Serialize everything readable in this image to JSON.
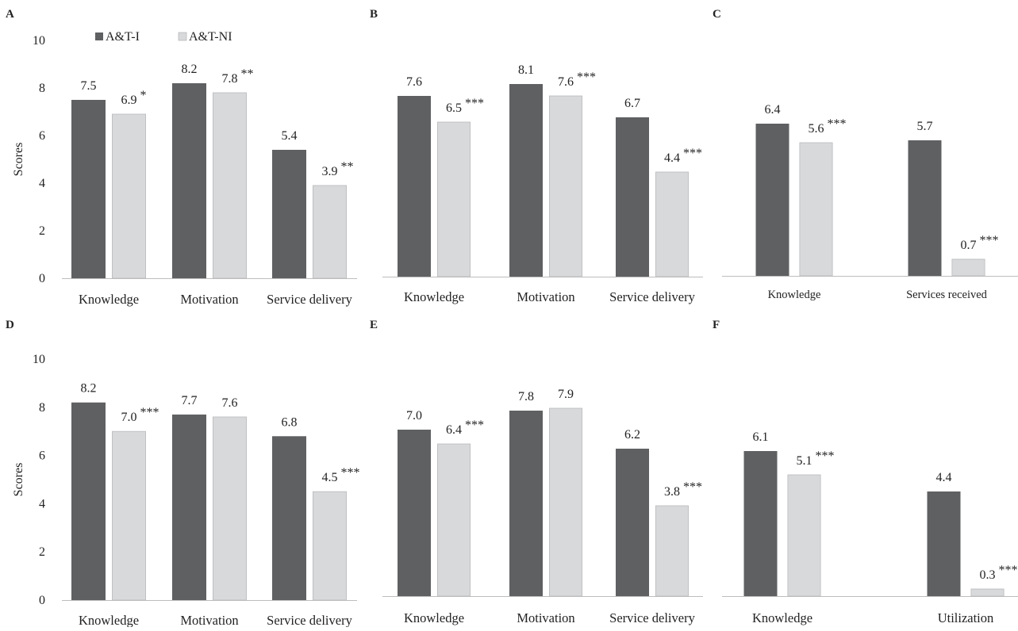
{
  "legend": {
    "i_label": "A&T-I",
    "ni_label": "A&T-NI"
  },
  "colors": {
    "i": "#5f6062",
    "ni": "#d8d9db",
    "ni_stroke": "#b9babc",
    "axis": "#bdbdbd"
  },
  "chart_data": [
    {
      "type": "bar",
      "panel": "A",
      "ylabel": "Scores",
      "ylim": [
        0,
        10
      ],
      "yticks": [
        "0",
        "2",
        "4",
        "6",
        "8",
        "10"
      ],
      "categories": [
        "Knowledge",
        "Motivation",
        "Service delivery"
      ],
      "series": [
        {
          "name": "A&T-I",
          "values": [
            7.5,
            8.2,
            5.4
          ],
          "labels": [
            "7.5",
            "8.2",
            "5.4"
          ]
        },
        {
          "name": "A&T-NI",
          "values": [
            6.9,
            7.8,
            3.9
          ],
          "labels": [
            "6.9",
            "7.8",
            "3.9"
          ],
          "significance": [
            "*",
            "**",
            "**"
          ]
        }
      ]
    },
    {
      "type": "bar",
      "panel": "B",
      "ylim": [
        0,
        10
      ],
      "categories": [
        "Knowledge",
        "Motivation",
        "Service delivery"
      ],
      "series": [
        {
          "name": "A&T-I",
          "values": [
            7.6,
            8.1,
            6.7
          ],
          "labels": [
            "7.6",
            "8.1",
            "6.7"
          ]
        },
        {
          "name": "A&T-NI",
          "values": [
            6.5,
            7.6,
            4.4
          ],
          "labels": [
            "6.5",
            "7.6",
            "4.4"
          ],
          "significance": [
            "***",
            "***",
            "***"
          ]
        }
      ]
    },
    {
      "type": "bar",
      "panel": "C",
      "ylim": [
        0,
        10
      ],
      "categories": [
        "Knowledge",
        "Services received"
      ],
      "series": [
        {
          "name": "A&T-I",
          "values": [
            6.4,
            5.7
          ],
          "labels": [
            "6.4",
            "5.7"
          ]
        },
        {
          "name": "A&T-NI",
          "values": [
            5.6,
            0.7
          ],
          "labels": [
            "5.6",
            "0.7"
          ],
          "significance": [
            "***",
            "***"
          ]
        }
      ]
    },
    {
      "type": "bar",
      "panel": "D",
      "ylabel": "Scores",
      "ylim": [
        0,
        10
      ],
      "yticks": [
        "0",
        "2",
        "4",
        "6",
        "8",
        "10"
      ],
      "categories": [
        "Knowledge",
        "Motivation",
        "Service delivery"
      ],
      "series": [
        {
          "name": "A&T-I",
          "values": [
            8.2,
            7.7,
            6.8
          ],
          "labels": [
            "8.2",
            "7.7",
            "6.8"
          ]
        },
        {
          "name": "A&T-NI",
          "values": [
            7.0,
            7.6,
            4.5
          ],
          "labels": [
            "7.0",
            "7.6",
            "4.5"
          ],
          "significance": [
            "***",
            "",
            "***"
          ]
        }
      ]
    },
    {
      "type": "bar",
      "panel": "E",
      "ylim": [
        0,
        10
      ],
      "categories": [
        "Knowledge",
        "Motivation",
        "Service delivery"
      ],
      "series": [
        {
          "name": "A&T-I",
          "values": [
            7.0,
            7.8,
            6.2
          ],
          "labels": [
            "7.0",
            "7.8",
            "6.2"
          ]
        },
        {
          "name": "A&T-NI",
          "values": [
            6.4,
            7.9,
            3.8
          ],
          "labels": [
            "6.4",
            "7.9",
            "3.8"
          ],
          "significance": [
            "***",
            "",
            "***"
          ]
        }
      ]
    },
    {
      "type": "bar",
      "panel": "F",
      "ylim": [
        0,
        10
      ],
      "categories": [
        "Knowledge",
        "Utilization"
      ],
      "series": [
        {
          "name": "A&T-I",
          "values": [
            6.1,
            4.4
          ],
          "labels": [
            "6.1",
            "4.4"
          ]
        },
        {
          "name": "A&T-NI",
          "values": [
            5.1,
            0.3
          ],
          "labels": [
            "5.1",
            "0.3"
          ],
          "significance": [
            "***",
            "***"
          ]
        }
      ]
    }
  ]
}
